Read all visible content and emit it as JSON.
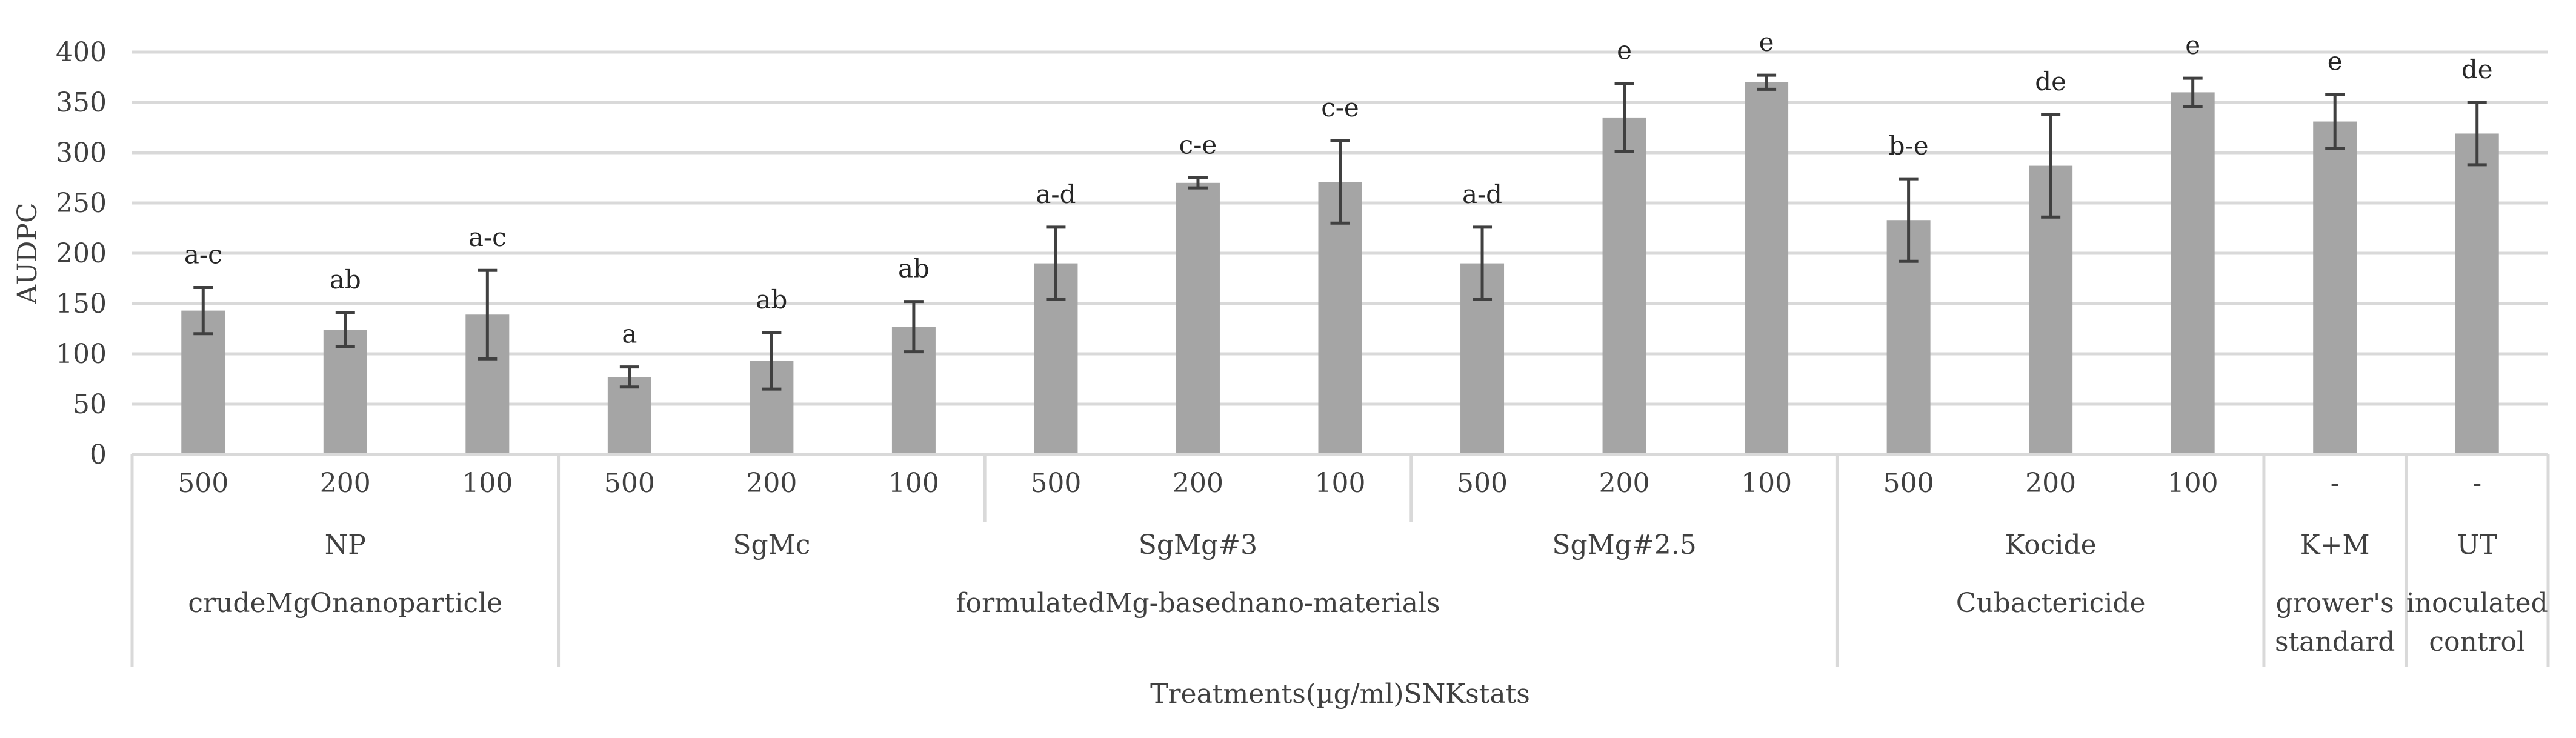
{
  "chart_data": {
    "type": "bar",
    "ylabel": "AUDPC",
    "xlabel": "Treatments​(µg/ml)​SNK​stats​",
    "ylim": [
      0,
      400
    ],
    "yticks": [
      0,
      50,
      100,
      150,
      200,
      250,
      300,
      350,
      400
    ],
    "grid": true,
    "bar_color": "#a5a5a5",
    "error_bar_color": "#404040",
    "categories": [
      "500",
      "200",
      "100",
      "500",
      "200",
      "100",
      "500",
      "200",
      "100",
      "500",
      "200",
      "100",
      "500",
      "200",
      "100",
      "-",
      "-"
    ],
    "values": [
      143,
      124,
      139,
      77,
      93,
      127,
      190,
      270,
      271,
      190,
      335,
      370,
      233,
      287,
      360,
      331,
      319
    ],
    "errors": [
      23,
      17,
      44,
      10,
      28,
      25,
      36,
      5,
      41,
      36,
      34,
      7,
      41,
      51,
      14,
      27,
      31
    ],
    "significance": [
      "a-c",
      "ab",
      "a-c",
      "a",
      "ab",
      "ab",
      "a-d",
      "c-e",
      "c-e",
      "a-d",
      "e",
      "e",
      "b-e",
      "de",
      "e",
      "e",
      "de"
    ],
    "groups_level2": [
      {
        "label": "NP",
        "span": 3
      },
      {
        "label": "SgMc",
        "span": 3
      },
      {
        "label": "SgMg​#3",
        "span": 3
      },
      {
        "label": "SgMg​#2.5",
        "span": 3
      },
      {
        "label": "Kocide",
        "span": 3
      },
      {
        "label": "K+M",
        "span": 1
      },
      {
        "label": "UT",
        "span": 1
      }
    ],
    "groups_level3": [
      {
        "label": "crude​MgO​nanoparticle",
        "span": 3
      },
      {
        "label": "formulated​Mg-based​nano-materials",
        "span": 9
      },
      {
        "label": "Cu​bactericide",
        "span": 3
      },
      {
        "label": "grower's standard",
        "span": 1
      },
      {
        "label": "inoculated control",
        "span": 1
      }
    ]
  }
}
